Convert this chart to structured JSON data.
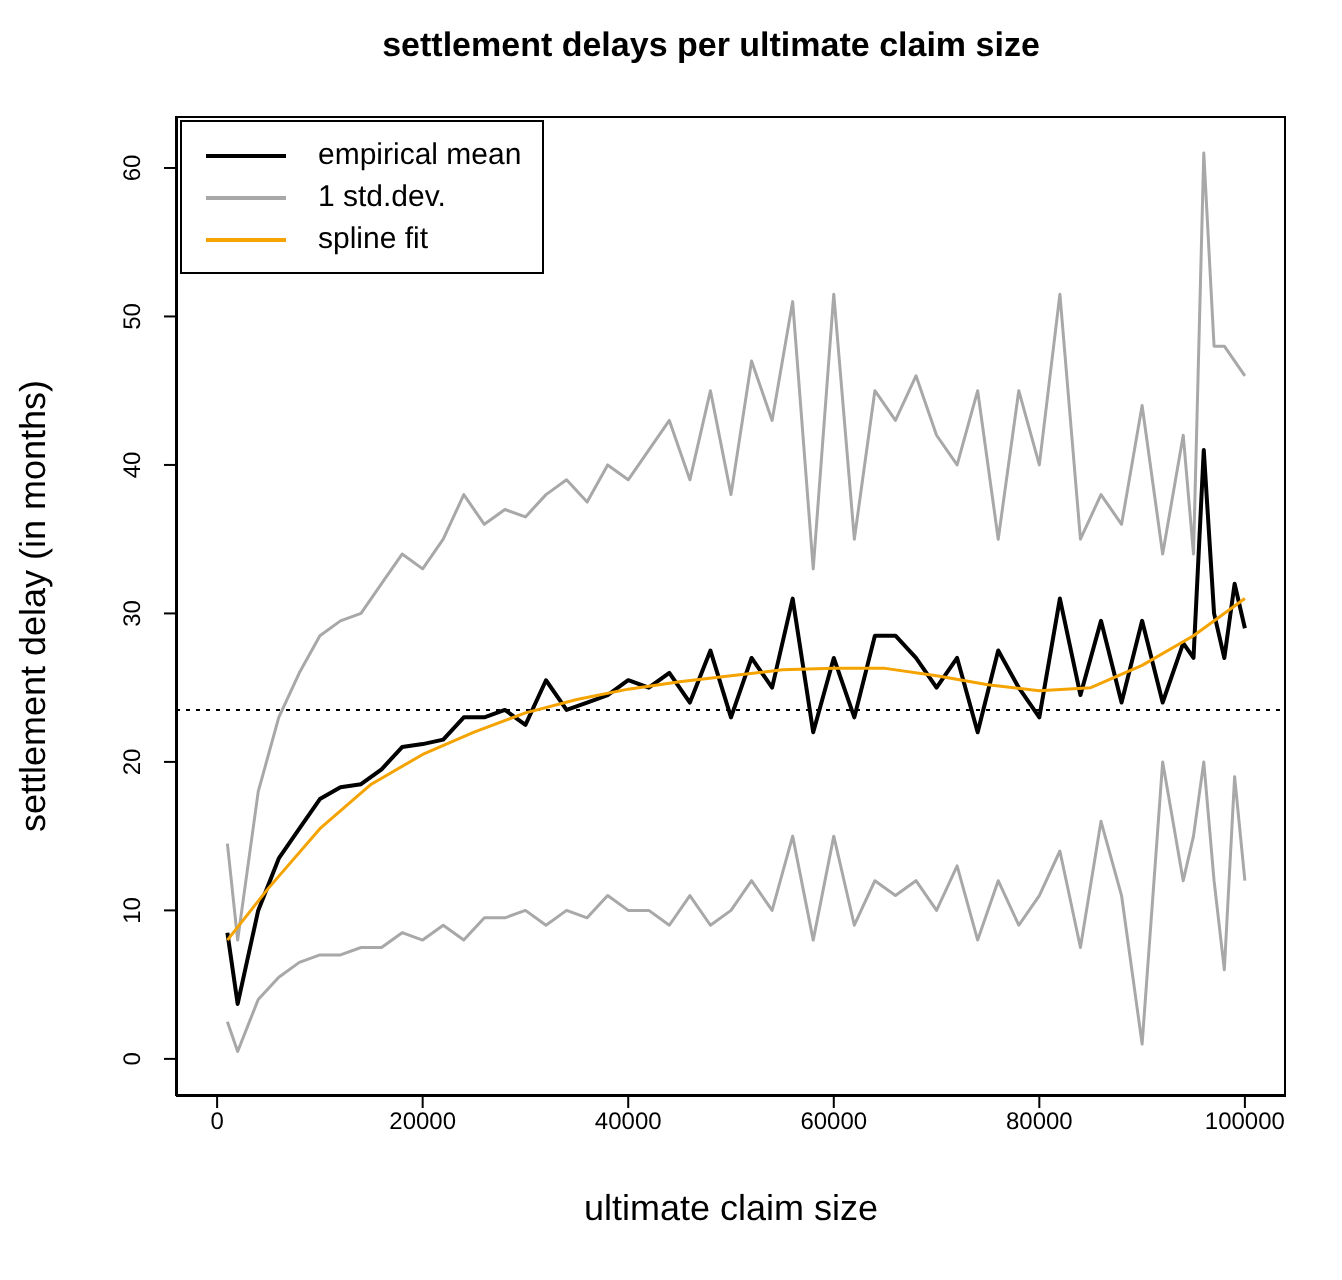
{
  "chart_data": {
    "type": "line",
    "title": "settlement delays per ultimate claim size",
    "xlabel": "ultimate claim size",
    "ylabel": "settlement delay (in months)",
    "xlim": [
      -4000,
      104000
    ],
    "xticks": [
      0,
      20000,
      40000,
      60000,
      80000,
      100000
    ],
    "ylim": [
      -2.5,
      63.5
    ],
    "yticks": [
      0,
      10,
      20,
      30,
      40,
      50,
      60
    ],
    "legend": "top left",
    "marker": "none",
    "line_style": "solid",
    "series": [
      {
        "name": "empirical mean",
        "color": "#000000",
        "x": [
          1000,
          2000,
          4000,
          6000,
          8000,
          10000,
          12000,
          14000,
          16000,
          18000,
          20000,
          22000,
          24000,
          26000,
          28000,
          30000,
          32000,
          34000,
          36000,
          38000,
          40000,
          42000,
          44000,
          46000,
          48000,
          50000,
          52000,
          54000,
          56000,
          58000,
          60000,
          62000,
          64000,
          66000,
          68000,
          70000,
          72000,
          74000,
          76000,
          78000,
          80000,
          82000,
          84000,
          86000,
          88000,
          90000,
          92000,
          94000,
          95000,
          96000,
          97000,
          98000,
          99000,
          100000
        ],
        "values": [
          8.5,
          3.7,
          10,
          13.5,
          15.5,
          17.5,
          18.3,
          18.5,
          19.5,
          21,
          21.2,
          21.5,
          23,
          23,
          23.5,
          22.5,
          25.5,
          23.5,
          24,
          24.5,
          25.5,
          25,
          26,
          24,
          27.5,
          23,
          27,
          25,
          31,
          22,
          27,
          23,
          28.5,
          28.5,
          27,
          25,
          27,
          22,
          27.5,
          25,
          23,
          31,
          24.5,
          29.5,
          24,
          29.5,
          24,
          28,
          27,
          41,
          30,
          27,
          32,
          29
        ]
      },
      {
        "name": "1 std.dev.",
        "color": "#a8a8a8",
        "x": [
          1000,
          2000,
          4000,
          6000,
          8000,
          10000,
          12000,
          14000,
          16000,
          18000,
          20000,
          22000,
          24000,
          26000,
          28000,
          30000,
          32000,
          34000,
          36000,
          38000,
          40000,
          42000,
          44000,
          46000,
          48000,
          50000,
          52000,
          54000,
          56000,
          58000,
          60000,
          62000,
          64000,
          66000,
          68000,
          70000,
          72000,
          74000,
          76000,
          78000,
          80000,
          82000,
          84000,
          86000,
          88000,
          90000,
          92000,
          94000,
          95000,
          96000,
          97000,
          98000,
          100000
        ],
        "values": [
          14.5,
          8,
          18,
          23,
          26,
          28.5,
          29.5,
          30,
          32,
          34,
          33,
          35,
          38,
          36,
          37,
          36.5,
          38,
          39,
          37.5,
          40,
          39,
          41,
          43,
          39,
          45,
          38,
          47,
          43,
          51,
          33,
          51.5,
          35,
          45,
          43,
          46,
          42,
          40,
          45,
          35,
          45,
          40,
          51.5,
          35,
          38,
          36,
          44,
          34,
          42,
          34,
          61,
          48,
          48,
          46
        ]
      },
      {
        "color": "#a8a8a8",
        "x": [
          1000,
          2000,
          4000,
          6000,
          8000,
          10000,
          12000,
          14000,
          16000,
          18000,
          20000,
          22000,
          24000,
          26000,
          28000,
          30000,
          32000,
          34000,
          36000,
          38000,
          40000,
          42000,
          44000,
          46000,
          48000,
          50000,
          52000,
          54000,
          56000,
          58000,
          60000,
          62000,
          64000,
          66000,
          68000,
          70000,
          72000,
          74000,
          76000,
          78000,
          80000,
          82000,
          84000,
          86000,
          88000,
          90000,
          92000,
          94000,
          95000,
          96000,
          97000,
          98000,
          99000,
          100000
        ],
        "values": [
          2.5,
          0.5,
          4,
          5.5,
          6.5,
          7,
          7,
          7.5,
          7.5,
          8.5,
          8,
          9,
          8,
          9.5,
          9.5,
          10,
          9,
          10,
          9.5,
          11,
          10,
          10,
          9,
          11,
          9,
          10,
          12,
          10,
          15,
          8,
          15,
          9,
          12,
          11,
          12,
          10,
          13,
          8,
          12,
          9,
          11,
          14,
          7.5,
          16,
          11,
          1,
          20,
          12,
          15,
          20,
          12,
          6,
          19,
          12
        ]
      },
      {
        "name": "spline fit",
        "color": "#f5a300",
        "x": [
          1000,
          5000,
          10000,
          15000,
          20000,
          25000,
          30000,
          35000,
          40000,
          45000,
          50000,
          55000,
          60000,
          65000,
          70000,
          75000,
          80000,
          85000,
          90000,
          95000,
          100000
        ],
        "values": [
          8,
          11.5,
          15.5,
          18.5,
          20.5,
          22,
          23.3,
          24.2,
          24.9,
          25.4,
          25.8,
          26.2,
          26.3,
          26.3,
          25.8,
          25.2,
          24.8,
          25,
          26.5,
          28.5,
          31
        ]
      }
    ],
    "ref_lines": [
      {
        "axis": "y",
        "value": 23.5,
        "color": "#000000",
        "line_style": "dotted"
      }
    ]
  }
}
